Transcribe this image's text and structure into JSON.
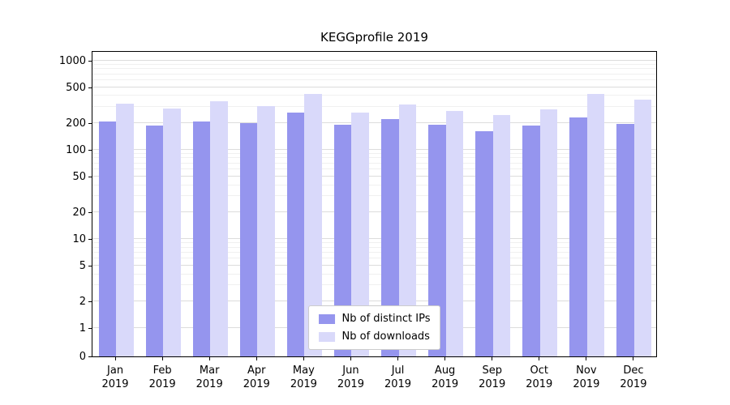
{
  "chart_data": {
    "type": "bar",
    "title": "KEGGprofile 2019",
    "scale": "symlog",
    "grid": true,
    "legend_position": "inside-bottom-center",
    "categories": [
      "Jan",
      "Feb",
      "Mar",
      "Apr",
      "May",
      "Jun",
      "Jul",
      "Aug",
      "Sep",
      "Oct",
      "Nov",
      "Dec"
    ],
    "year": "2019",
    "series": [
      {
        "name": "Nb of distinct IPs",
        "color": "#9595ee",
        "values": [
          205,
          185,
          205,
          200,
          260,
          190,
          220,
          190,
          160,
          185,
          230,
          195
        ]
      },
      {
        "name": "Nb of downloads",
        "color": "#d9d9fa",
        "values": [
          330,
          290,
          350,
          310,
          420,
          260,
          320,
          270,
          245,
          280,
          420,
          360
        ]
      }
    ],
    "y_ticks": [
      0,
      1,
      2,
      5,
      10,
      20,
      50,
      100,
      200,
      500,
      1000
    ],
    "ylim": [
      0,
      1300
    ],
    "linear_threshold": 1,
    "xlabel": "",
    "ylabel": ""
  }
}
